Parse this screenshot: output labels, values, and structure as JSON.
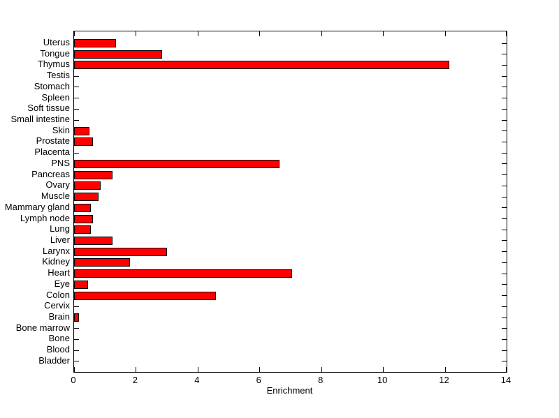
{
  "chart_data": {
    "type": "bar",
    "orientation": "horizontal",
    "title": "",
    "xlabel": "Enrichment",
    "ylabel": "",
    "xlim": [
      0,
      14
    ],
    "xticks": [
      0,
      2,
      4,
      6,
      8,
      10,
      12,
      14
    ],
    "grid": false,
    "legend": null,
    "categories": [
      "Uterus",
      "Tongue",
      "Thymus",
      "Testis",
      "Stomach",
      "Spleen",
      "Soft tissue",
      "Small intestine",
      "Skin",
      "Prostate",
      "Placenta",
      "PNS",
      "Pancreas",
      "Ovary",
      "Muscle",
      "Mammary gland",
      "Lymph node",
      "Lung",
      "Liver",
      "Larynx",
      "Kidney",
      "Heart",
      "Eye",
      "Colon",
      "Cervix",
      "Brain",
      "Bone marrow",
      "Bone",
      "Blood",
      "Bladder"
    ],
    "values": [
      1.35,
      2.85,
      12.15,
      0,
      0,
      0,
      0,
      0,
      0.5,
      0.6,
      0,
      6.65,
      1.25,
      0.85,
      0.8,
      0.55,
      0.6,
      0.55,
      1.25,
      3.0,
      1.8,
      7.05,
      0.45,
      4.6,
      0,
      0.15,
      0,
      0,
      0,
      0
    ],
    "colors": {
      "bar_fill": "#ff0000",
      "bar_edge": "#000000",
      "axis": "#000000",
      "background": "#ffffff",
      "text": "#000000"
    }
  }
}
